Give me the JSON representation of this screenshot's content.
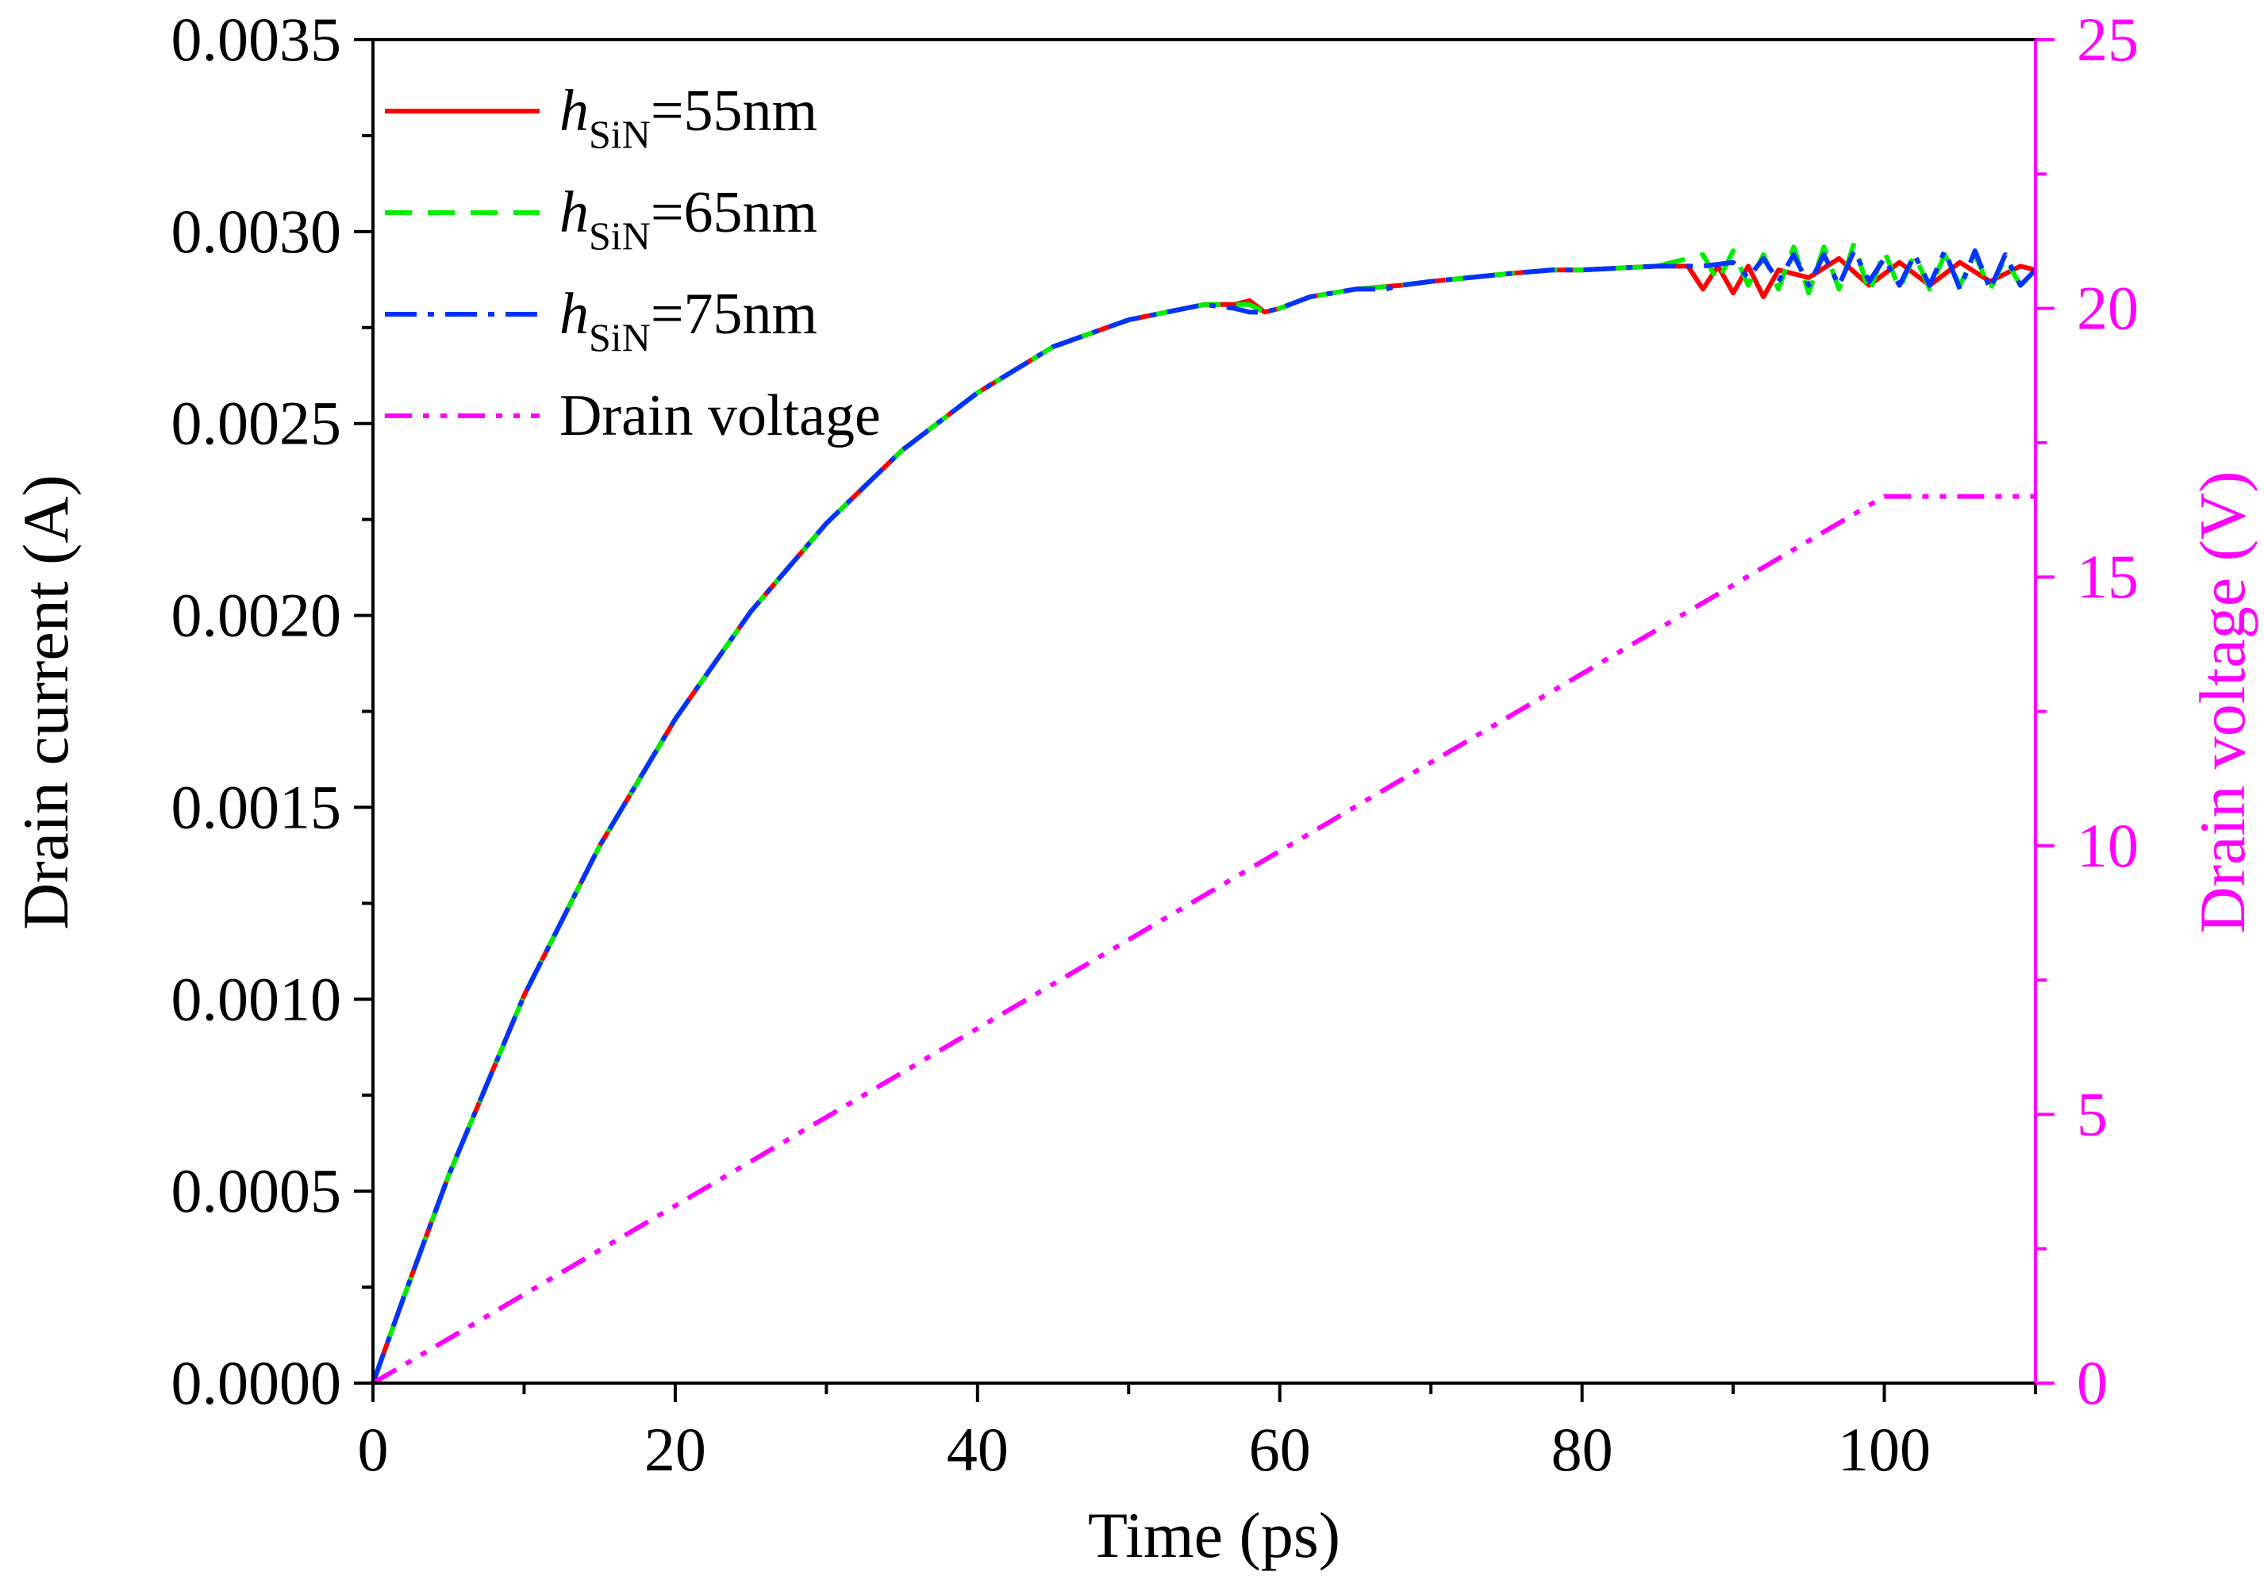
{
  "chart_data": {
    "type": "line",
    "x_axis": {
      "label": "Time (ps)",
      "range": [
        0,
        110
      ],
      "ticks": [
        0,
        20,
        40,
        60,
        80,
        100
      ],
      "minor_step": 10
    },
    "y_left": {
      "label": "Drain current (A)",
      "range": [
        0,
        0.0035
      ],
      "ticks": [
        "0.0000",
        "0.0005",
        "0.0010",
        "0.0015",
        "0.0020",
        "0.0025",
        "0.0030",
        "0.0035"
      ],
      "tick_values": [
        0,
        0.0005,
        0.001,
        0.0015,
        0.002,
        0.0025,
        0.003,
        0.0035
      ]
    },
    "y_right": {
      "label": "Drain voltage (V)",
      "range": [
        0,
        25
      ],
      "ticks": [
        "0",
        "5",
        "10",
        "15",
        "20",
        "25"
      ],
      "tick_values": [
        0,
        5,
        10,
        15,
        20,
        25
      ],
      "color": "#ff00ff"
    },
    "legend": {
      "position": "top-left",
      "entries": [
        {
          "prefix": "h",
          "sub": "SiN",
          "suffix": "=55nm"
        },
        {
          "prefix": "h",
          "sub": "SiN",
          "suffix": "=65nm"
        },
        {
          "prefix": "h",
          "sub": "SiN",
          "suffix": "=75nm"
        },
        {
          "text": "Drain voltage"
        }
      ]
    },
    "series": [
      {
        "name": "hSiN=55nm",
        "axis": "left",
        "color": "#ff0000",
        "style": "solid",
        "x": [
          0,
          2,
          5,
          10,
          15,
          20,
          25,
          30,
          35,
          40,
          45,
          50,
          55,
          57,
          58,
          59,
          60,
          62,
          65,
          68,
          70,
          75,
          78,
          80,
          85,
          87,
          88,
          89,
          90,
          91,
          92,
          93,
          95,
          97,
          99,
          101,
          103,
          105,
          107,
          109,
          110
        ],
        "values": [
          0,
          0.00022,
          0.00054,
          0.00101,
          0.0014,
          0.00173,
          0.00201,
          0.00224,
          0.00243,
          0.00258,
          0.0027,
          0.00277,
          0.00281,
          0.00281,
          0.00282,
          0.00279,
          0.0028,
          0.00283,
          0.00285,
          0.00286,
          0.00287,
          0.00289,
          0.0029,
          0.0029,
          0.00291,
          0.00291,
          0.00285,
          0.00291,
          0.00284,
          0.00291,
          0.00283,
          0.0029,
          0.00288,
          0.00293,
          0.00286,
          0.00292,
          0.00286,
          0.00292,
          0.00287,
          0.00291,
          0.0029
        ]
      },
      {
        "name": "hSiN=65nm",
        "axis": "left",
        "color": "#00ee00",
        "style": "dash",
        "x": [
          0,
          2,
          5,
          10,
          15,
          20,
          25,
          30,
          35,
          40,
          45,
          50,
          55,
          57,
          58,
          59,
          60,
          62,
          65,
          68,
          70,
          75,
          78,
          80,
          85,
          88,
          89,
          90,
          91,
          92,
          93,
          94,
          95,
          96,
          97,
          98,
          99,
          100,
          101,
          102,
          103,
          104,
          105,
          106,
          107,
          108,
          109,
          110
        ],
        "values": [
          0,
          0.00022,
          0.00054,
          0.00101,
          0.0014,
          0.00173,
          0.00201,
          0.00224,
          0.00243,
          0.00258,
          0.0027,
          0.00277,
          0.00281,
          0.00281,
          0.00281,
          0.00279,
          0.0028,
          0.00283,
          0.00285,
          0.00286,
          0.00287,
          0.00289,
          0.0029,
          0.0029,
          0.00291,
          0.00294,
          0.00287,
          0.00295,
          0.00286,
          0.00294,
          0.00285,
          0.00296,
          0.00284,
          0.00296,
          0.00285,
          0.00297,
          0.00284,
          0.00295,
          0.00285,
          0.00294,
          0.00285,
          0.00294,
          0.00286,
          0.00294,
          0.00285,
          0.00293,
          0.00286,
          0.0029
        ]
      },
      {
        "name": "hSiN=75nm",
        "axis": "left",
        "color": "#0033ff",
        "style": "dashdot",
        "x": [
          0,
          2,
          5,
          10,
          15,
          20,
          25,
          30,
          35,
          40,
          45,
          50,
          55,
          57,
          58,
          59,
          60,
          62,
          65,
          67,
          68,
          70,
          75,
          78,
          80,
          85,
          88,
          90,
          91,
          92,
          93,
          94,
          95,
          96,
          97,
          98,
          99,
          100,
          101,
          102,
          103,
          104,
          105,
          106,
          107,
          108,
          109,
          110
        ],
        "values": [
          0,
          0.00022,
          0.00054,
          0.00101,
          0.0014,
          0.00173,
          0.00201,
          0.00224,
          0.00243,
          0.00258,
          0.0027,
          0.00277,
          0.00281,
          0.0028,
          0.00279,
          0.00279,
          0.0028,
          0.00283,
          0.00285,
          0.00285,
          0.00286,
          0.00287,
          0.00289,
          0.0029,
          0.0029,
          0.00291,
          0.00291,
          0.00292,
          0.00288,
          0.00293,
          0.00287,
          0.00294,
          0.00286,
          0.00294,
          0.00286,
          0.00295,
          0.00287,
          0.00293,
          0.00286,
          0.00294,
          0.00286,
          0.00295,
          0.00285,
          0.00295,
          0.00285,
          0.00294,
          0.00286,
          0.0029
        ]
      },
      {
        "name": "Drain voltage",
        "axis": "right",
        "color": "#ff00ff",
        "style": "dashdotdot",
        "x": [
          0,
          100,
          110
        ],
        "values": [
          0,
          16.5,
          16.5
        ]
      }
    ]
  }
}
